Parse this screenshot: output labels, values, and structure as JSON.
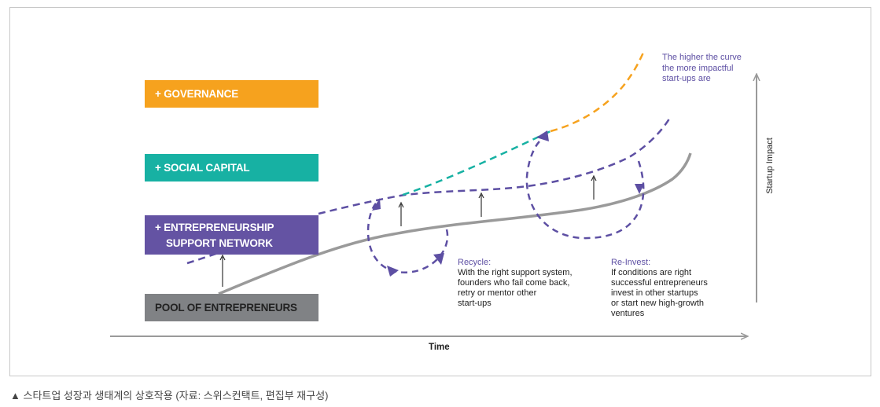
{
  "colors": {
    "governance": "#f6a21e",
    "social_capital": "#17b1a3",
    "entrepreneurship": "#6453a3",
    "pool": "#808285",
    "curve_gray": "#9a9a9a",
    "dashed_purple": "#5d4fa3",
    "dashed_orange": "#f6a21e",
    "dashed_teal": "#17b1a3"
  },
  "boxes": {
    "governance": "+ GOVERNANCE",
    "social_capital": "+ SOCIAL CAPITAL",
    "entrepreneurship_line1": "+ ENTREPRENEURSHIP",
    "entrepreneurship_line2": "SUPPORT NETWORK",
    "pool": "POOL OF ENTREPRENEURS"
  },
  "annotations": {
    "higher_line1": "The higher the curve",
    "higher_line2": "the more impactful",
    "higher_line3": "start-ups are",
    "recycle_title": "Recycle:",
    "recycle_line1": "With the right support system,",
    "recycle_line2": "founders who fail come back,",
    "recycle_line3": "retry or mentor other",
    "recycle_line4": "start-ups",
    "reinvest_title": "Re-Invest:",
    "reinvest_line1": "If conditions are right",
    "reinvest_line2": "successful entrepreneurs",
    "reinvest_line3": "invest in other startups",
    "reinvest_line4": "or start new high-growth",
    "reinvest_line5": "ventures"
  },
  "axes": {
    "x_label": "Time",
    "y_label": "Startup Impact"
  },
  "caption": "▲ 스타트업 성장과 생태계의 상호작용 (자료: 스위스컨택트, 편집부 재구성)"
}
